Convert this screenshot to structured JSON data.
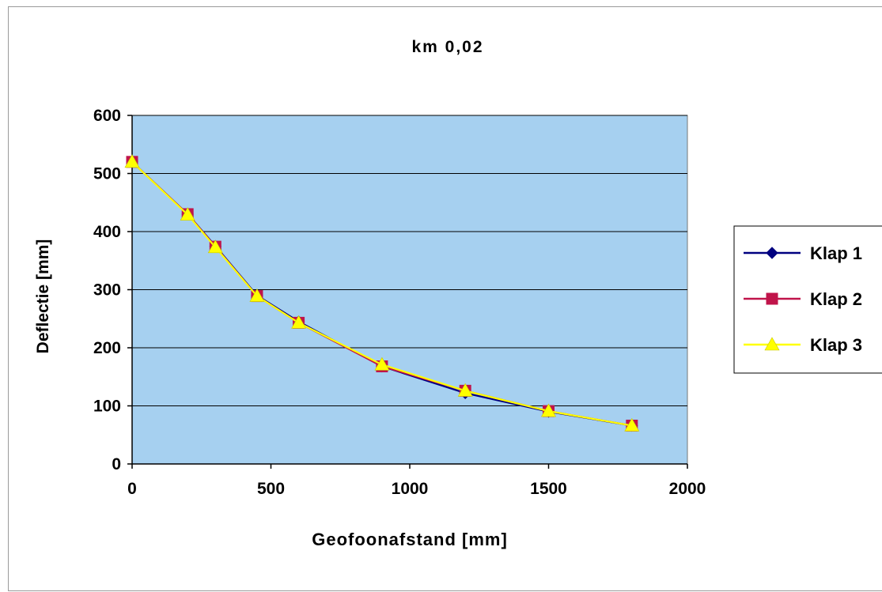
{
  "chart_data": {
    "type": "line",
    "title": "km 0,02",
    "xlabel": "Geofoonafstand [mm]",
    "ylabel": "Deflectie [mm]",
    "xlim": [
      0,
      2000
    ],
    "ylim": [
      0,
      600
    ],
    "x_ticks": [
      0,
      500,
      1000,
      1500,
      2000
    ],
    "y_ticks": [
      0,
      100,
      200,
      300,
      400,
      500,
      600
    ],
    "plot_background": "#a6d0f0",
    "grid": "horizontal",
    "legend_position": "right",
    "x": [
      0,
      200,
      300,
      450,
      600,
      900,
      1200,
      1500,
      1800
    ],
    "series": [
      {
        "name": "Klap 1",
        "color": "#000080",
        "marker": "diamond",
        "values": [
          520,
          430,
          375,
          290,
          245,
          168,
          122,
          90,
          66
        ]
      },
      {
        "name": "Klap 2",
        "color": "#c0144a",
        "marker": "square",
        "values": [
          520,
          430,
          374,
          289,
          243,
          168,
          126,
          91,
          66
        ]
      },
      {
        "name": "Klap 3",
        "color": "#ffff00",
        "marker": "triangle",
        "values": [
          520,
          429,
          373,
          289,
          243,
          171,
          126,
          91,
          66
        ]
      }
    ]
  }
}
